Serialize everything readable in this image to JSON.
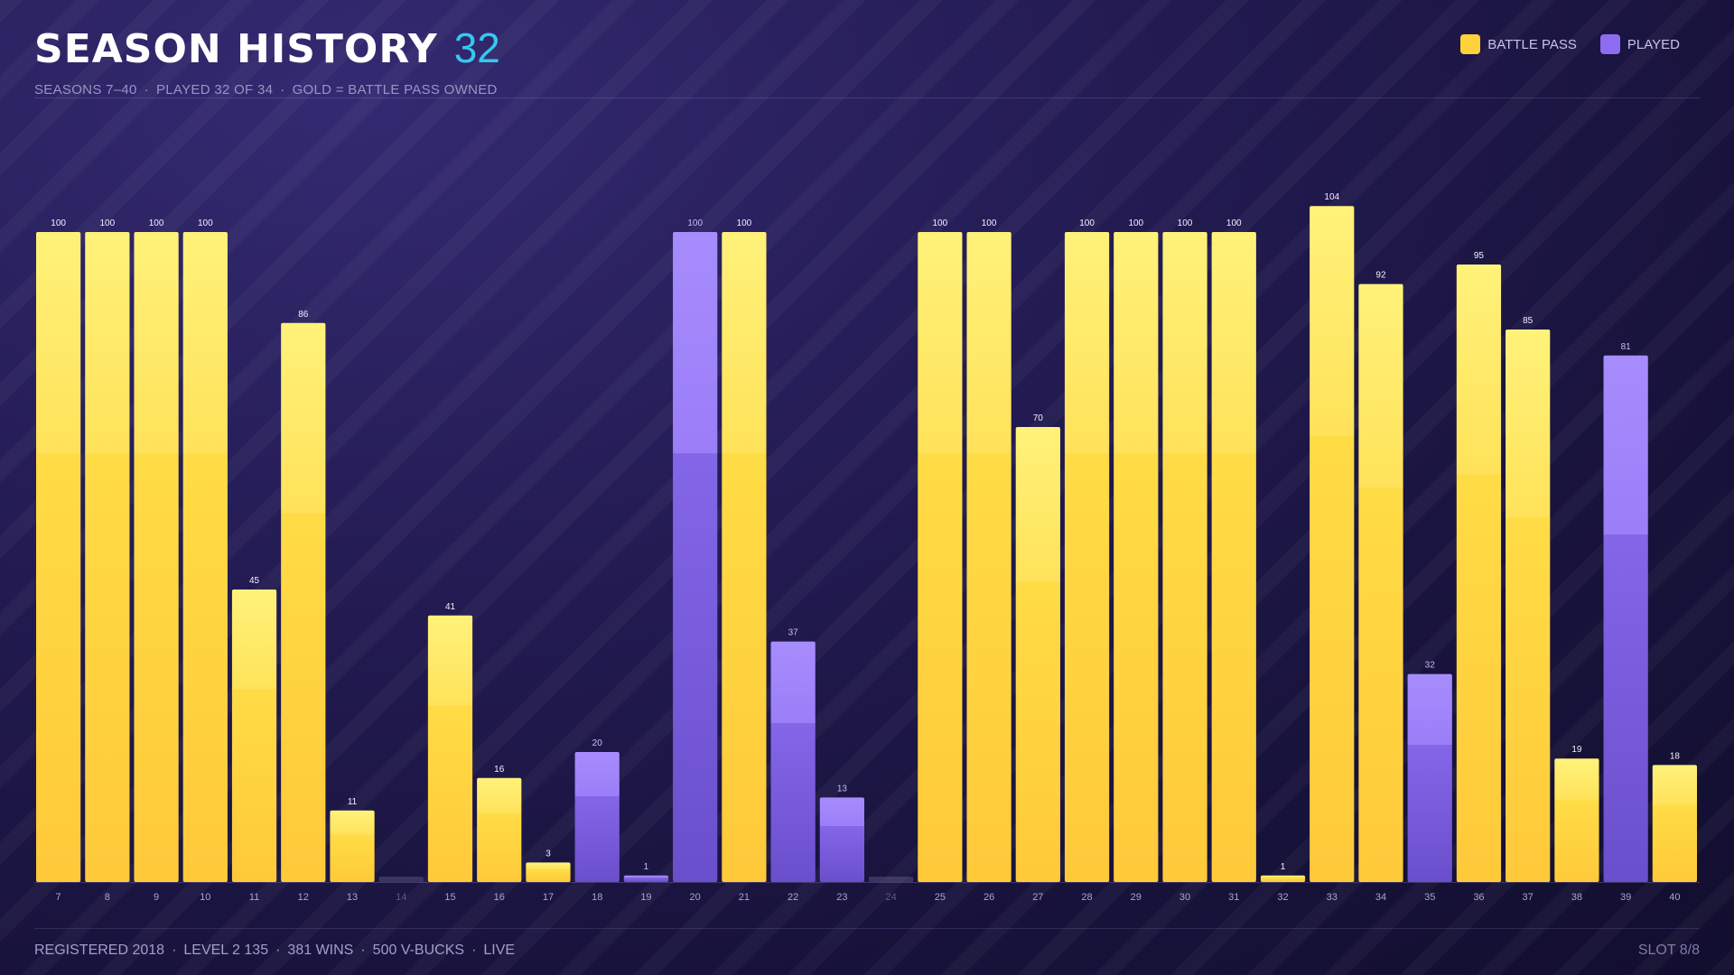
{
  "header": {
    "title": "SEASON HISTORY",
    "count": "32",
    "subtitle": {
      "seasons": "SEASONS 7–40",
      "played": "PLAYED 32 OF 34",
      "note": "GOLD = BATTLE PASS OWNED"
    }
  },
  "legend": {
    "battle_pass": "BATTLE PASS",
    "played": "PLAYED"
  },
  "colors": {
    "battle_pass": "#ffd23c",
    "played": "#8c6df0",
    "count_accent": "#35c8f0"
  },
  "footer": {
    "registered": "REGISTERED 2018",
    "level": "LEVEL 2 135",
    "wins": "381 WINS",
    "vbucks": "500 V-BUCKS",
    "status": "LIVE",
    "slot": "SLOT 8/8"
  },
  "chart_data": {
    "type": "bar",
    "title": "SEASON HISTORY",
    "categories": [
      "7",
      "8",
      "9",
      "10",
      "11",
      "12",
      "13",
      "14",
      "15",
      "16",
      "17",
      "18",
      "19",
      "20",
      "21",
      "22",
      "23",
      "24",
      "25",
      "26",
      "27",
      "28",
      "29",
      "30",
      "31",
      "32",
      "33",
      "34",
      "35",
      "36",
      "37",
      "38",
      "39",
      "40"
    ],
    "values": [
      100,
      100,
      100,
      100,
      45,
      86,
      11,
      0,
      41,
      16,
      3,
      20,
      1,
      100,
      100,
      37,
      13,
      0,
      100,
      100,
      70,
      100,
      100,
      100,
      100,
      1,
      104,
      92,
      32,
      95,
      85,
      19,
      81,
      18
    ],
    "value_labels": [
      "100",
      "100",
      "100",
      "100",
      "45",
      "86",
      "11",
      "",
      "41",
      "16",
      "3",
      "20",
      "1",
      "100",
      "100",
      "37",
      "13",
      "",
      "100",
      "100",
      "70",
      "100",
      "100",
      "100",
      "100",
      "1",
      "104",
      "92",
      "32",
      "95",
      "85",
      "19",
      "81",
      "18"
    ],
    "battle_pass": [
      true,
      true,
      true,
      true,
      true,
      true,
      true,
      false,
      true,
      true,
      true,
      false,
      false,
      false,
      true,
      false,
      false,
      false,
      true,
      true,
      true,
      true,
      true,
      true,
      true,
      true,
      true,
      true,
      false,
      true,
      true,
      true,
      false,
      true
    ],
    "played": [
      true,
      true,
      true,
      true,
      true,
      true,
      true,
      false,
      true,
      true,
      true,
      true,
      true,
      true,
      true,
      true,
      true,
      false,
      true,
      true,
      true,
      true,
      true,
      true,
      true,
      true,
      true,
      true,
      true,
      true,
      true,
      true,
      true,
      true
    ],
    "ylim": [
      0,
      100
    ],
    "grid": false,
    "legend_position": "top-right"
  }
}
